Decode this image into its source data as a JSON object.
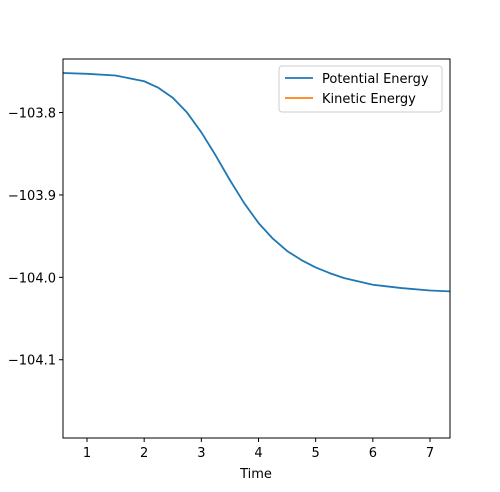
{
  "chart_data": {
    "type": "line",
    "title": "",
    "xlabel": "Time",
    "ylabel": "",
    "xlim": [
      0.58,
      7.35
    ],
    "ylim": [
      -104.195,
      -103.735
    ],
    "xticks": [
      1,
      2,
      3,
      4,
      5,
      6,
      7
    ],
    "xtick_labels": [
      "1",
      "2",
      "3",
      "4",
      "5",
      "6",
      "7"
    ],
    "yticks": [
      -103.8,
      -103.9,
      -104.0,
      -104.1
    ],
    "ytick_labels": [
      "−103.8",
      "−103.9",
      "−104.0",
      "−104.1"
    ],
    "grid": false,
    "legend_position": "top-right",
    "series": [
      {
        "name": "Potential Energy",
        "color": "#1f77b4",
        "x": [
          0.58,
          1.0,
          1.5,
          2.0,
          2.25,
          2.5,
          2.75,
          3.0,
          3.25,
          3.5,
          3.75,
          4.0,
          4.25,
          4.5,
          4.75,
          5.0,
          5.25,
          5.5,
          6.0,
          6.5,
          7.0,
          7.35
        ],
        "y": [
          -103.752,
          -103.753,
          -103.755,
          -103.762,
          -103.77,
          -103.782,
          -103.8,
          -103.824,
          -103.852,
          -103.882,
          -103.91,
          -103.934,
          -103.953,
          -103.968,
          -103.979,
          -103.988,
          -103.995,
          -104.001,
          -104.009,
          -104.013,
          -104.016,
          -104.017
        ]
      },
      {
        "name": "Kinetic Energy",
        "color": "#ff7f0e",
        "x": [],
        "y": []
      }
    ]
  }
}
